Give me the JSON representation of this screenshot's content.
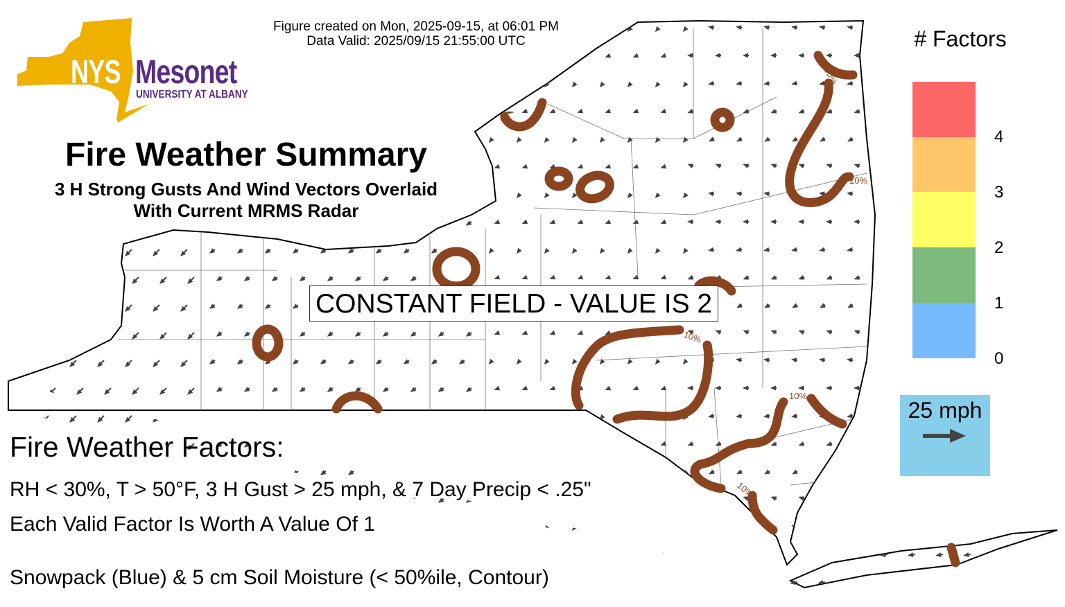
{
  "header": {
    "created": "Figure created on Mon, 2025-09-15, at 06:01 PM",
    "valid": "Data Valid: 2025/09/15 21:55:00 UTC"
  },
  "logo": {
    "nys": "NYS",
    "mesonet": "Mesonet",
    "university": "UNIVERSITY AT ALBANY",
    "gold": "#f0b000",
    "purple": "#582c83"
  },
  "title": "Fire Weather Summary",
  "subtitle": [
    "3 H Strong Gusts And Wind Vectors Overlaid",
    "With Current MRMS Radar"
  ],
  "map": {
    "constant_field": "CONSTANT FIELD - VALUE IS 2",
    "contour_label": "10%",
    "contour_color": "#8b4420",
    "arrow_color": "#444444"
  },
  "factors": {
    "heading": "Fire Weather Factors:",
    "criteria": "RH < 30%, T > 50°F, 3 H Gust > 25 mph, & 7 Day Precip < .25\"",
    "worth": "Each Valid Factor Is Worth A Value Of 1",
    "overlay": "Snowpack (Blue) & 5 cm Soil Moisture (< 50%ile, Contour)"
  },
  "legend": {
    "title": "# Factors",
    "bands": [
      {
        "color": "#ff6666"
      },
      {
        "color": "#ffc66a"
      },
      {
        "color": "#ffff66"
      },
      {
        "color": "#7dba7d"
      },
      {
        "color": "#77bbff"
      }
    ],
    "ticks": [
      "4",
      "3",
      "2",
      "1",
      "0"
    ]
  },
  "wind_key": {
    "label": "25 mph",
    "bg": "#87ceeb"
  }
}
